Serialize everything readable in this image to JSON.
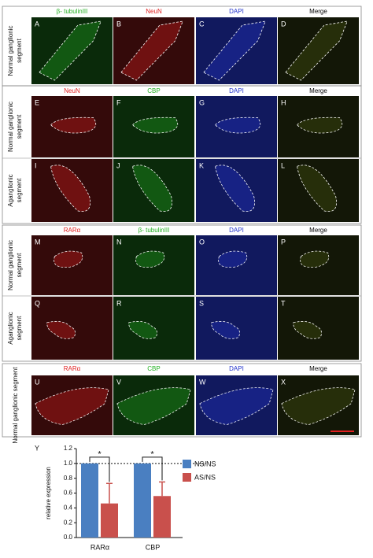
{
  "figure": {
    "groups": [
      {
        "headers": [
          {
            "text": "β- tubulinIII",
            "color": "#22b022"
          },
          {
            "text": "NeuN",
            "color": "#e02020"
          },
          {
            "text": "DAPI",
            "color": "#2233cc"
          },
          {
            "text": "Merge",
            "color": "#000000"
          }
        ],
        "rows": [
          {
            "label": [
              "Normal ganglionic",
              "segment"
            ],
            "panels": [
              "A",
              "B",
              "C",
              "D"
            ]
          }
        ]
      },
      {
        "headers": [
          {
            "text": "NeuN",
            "color": "#e02020"
          },
          {
            "text": "CBP",
            "color": "#22b022"
          },
          {
            "text": "DAPI",
            "color": "#2233cc"
          },
          {
            "text": "Merge",
            "color": "#000000"
          }
        ],
        "rows": [
          {
            "label": [
              "Normal ganglionic",
              "segment"
            ],
            "panels": [
              "E",
              "F",
              "G",
              "H"
            ]
          },
          {
            "label": [
              "Aganglionic",
              "segment"
            ],
            "panels": [
              "I",
              "J",
              "K",
              "L"
            ]
          }
        ]
      },
      {
        "headers": [
          {
            "text": "RARα",
            "color": "#e02020"
          },
          {
            "text": "β- tubulinIII",
            "color": "#22b022"
          },
          {
            "text": "DAPI",
            "color": "#2233cc"
          },
          {
            "text": "Merge",
            "color": "#000000"
          }
        ],
        "rows": [
          {
            "label": [
              "Normal ganglionic",
              "segment"
            ],
            "panels": [
              "M",
              "N",
              "O",
              "P"
            ]
          },
          {
            "label": [
              "Aganglionic",
              "segment"
            ],
            "panels": [
              "Q",
              "R",
              "S",
              "T"
            ]
          }
        ]
      },
      {
        "headers": [
          {
            "text": "RARα",
            "color": "#e02020"
          },
          {
            "text": "CBP",
            "color": "#22b022"
          },
          {
            "text": "DAPI",
            "color": "#2233cc"
          },
          {
            "text": "Merge",
            "color": "#000000"
          }
        ],
        "rows": [
          {
            "label": [
              "Normal ganglionic segment"
            ],
            "panels": [
              "U",
              "V",
              "W",
              "X"
            ]
          }
        ]
      }
    ]
  },
  "chart_data": {
    "type": "bar",
    "panel_label": "Y",
    "ylabel": "relative expression",
    "categories": [
      "RARα",
      "CBP"
    ],
    "series": [
      {
        "name": "NS/NS",
        "color": "#4a7fc1",
        "values": [
          1.0,
          1.0
        ]
      },
      {
        "name": "AS/NS",
        "color": "#c9504c",
        "values": [
          0.46,
          0.56
        ],
        "errors": [
          0.27,
          0.19
        ]
      }
    ],
    "ylim": [
      0,
      1.2
    ],
    "yticks": [
      {
        "value": 0,
        "label": "0.0"
      },
      0.2,
      0.4,
      0.6,
      0.8,
      {
        "value": 1,
        "label": "1.0"
      },
      1.2
    ],
    "reference_line": 1,
    "annotations": [
      "*",
      "*"
    ],
    "legend": "right"
  }
}
